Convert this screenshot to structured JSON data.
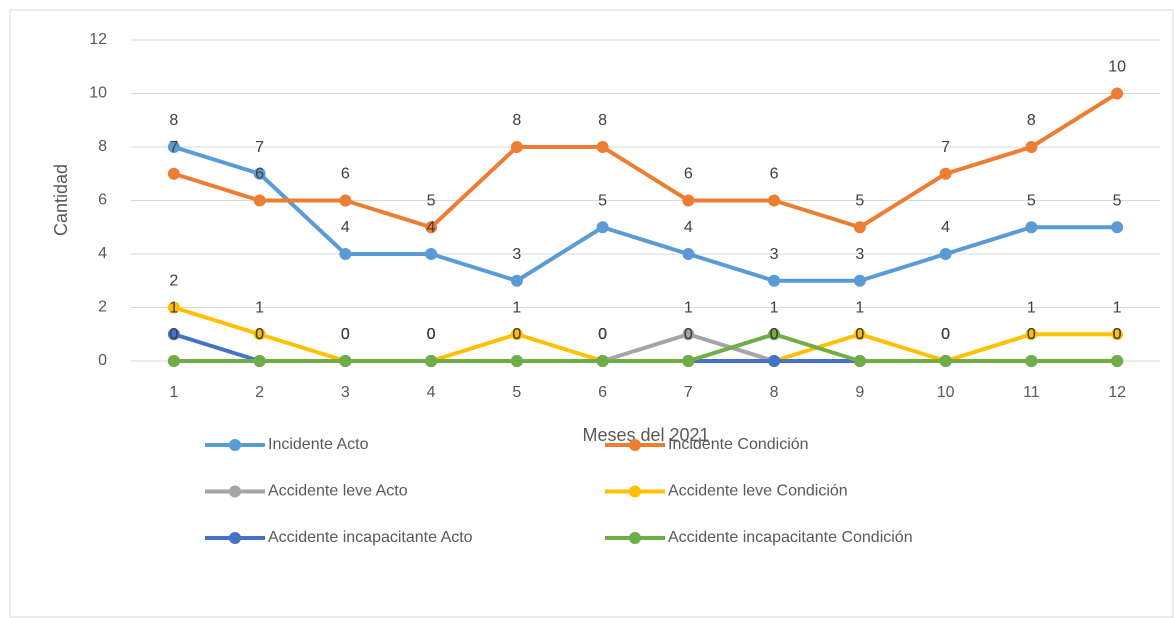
{
  "chart_data": {
    "type": "line",
    "x_label": "Meses del 2021",
    "y_label": "Cantidad",
    "categories": [
      "1",
      "2",
      "3",
      "4",
      "5",
      "6",
      "7",
      "8",
      "9",
      "10",
      "11",
      "12"
    ],
    "series": [
      {
        "name": "Incidente Acto",
        "color": "#5b9bd5",
        "values": [
          8,
          7,
          4,
          4,
          3,
          5,
          4,
          3,
          3,
          4,
          5,
          5
        ]
      },
      {
        "name": "Incidente Condición",
        "color": "#ed7d31",
        "values": [
          7,
          6,
          6,
          5,
          8,
          8,
          6,
          6,
          5,
          7,
          8,
          10
        ]
      },
      {
        "name": "Accidente leve Acto",
        "color": "#a5a5a5",
        "values": [
          0,
          0,
          0,
          0,
          0,
          0,
          1,
          0,
          0,
          0,
          0,
          0
        ]
      },
      {
        "name": "Accidente leve Condición",
        "color": "#ffc000",
        "values": [
          2,
          1,
          0,
          0,
          1,
          0,
          0,
          0,
          1,
          0,
          1,
          1
        ]
      },
      {
        "name": "Accidente incapacitante Acto",
        "color": "#4472c4",
        "values": [
          1,
          0,
          0,
          0,
          0,
          0,
          0,
          0,
          0,
          0,
          0,
          0
        ]
      },
      {
        "name": "Accidente incapacitante Condición",
        "color": "#70ad47",
        "values": [
          0,
          0,
          0,
          0,
          0,
          0,
          0,
          1,
          0,
          0,
          0,
          0
        ]
      }
    ],
    "ylim": [
      0,
      12
    ],
    "yticks": [
      0,
      2,
      4,
      6,
      8,
      10,
      12
    ],
    "grid": true,
    "data_labels": true,
    "legend": "bottom"
  }
}
